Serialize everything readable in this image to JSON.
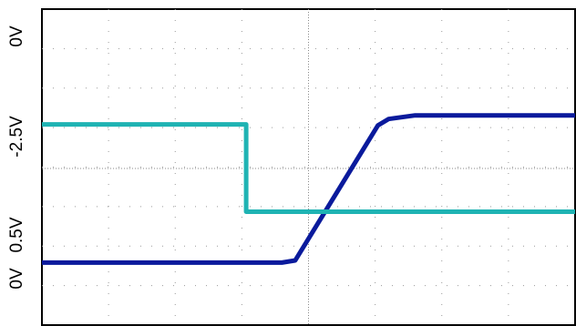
{
  "chart_data": [
    {
      "type": "line",
      "title": "",
      "xlabel": "",
      "ylabel": "",
      "ylim": [
        -3.9,
        0.5
      ],
      "y_ticks": [
        "0V",
        "-2.5V"
      ],
      "grid": "dotted, 8x8 divisions with center crosshair",
      "series": [
        {
          "color": "#0a1a9c",
          "points": [
            [
              0,
              -3.03
            ],
            [
              0.45,
              -3.03
            ],
            [
              0.475,
              -3.0
            ],
            [
              0.63,
              -1.12
            ],
            [
              0.65,
              -1.03
            ],
            [
              0.7,
              -0.98
            ],
            [
              1.0,
              -0.98
            ]
          ]
        }
      ]
    },
    {
      "type": "line",
      "title": "",
      "xlabel": "",
      "ylabel": "",
      "ylim": [
        -0.65,
        1.05
      ],
      "y_ticks": [
        "0V",
        "0.5V"
      ],
      "series": [
        {
          "color": "#1fb3b3",
          "points": [
            [
              0,
              0.43
            ],
            [
              0.383,
              0.43
            ],
            [
              0.383,
              -0.04
            ],
            [
              1.0,
              -0.04
            ]
          ]
        }
      ]
    }
  ]
}
